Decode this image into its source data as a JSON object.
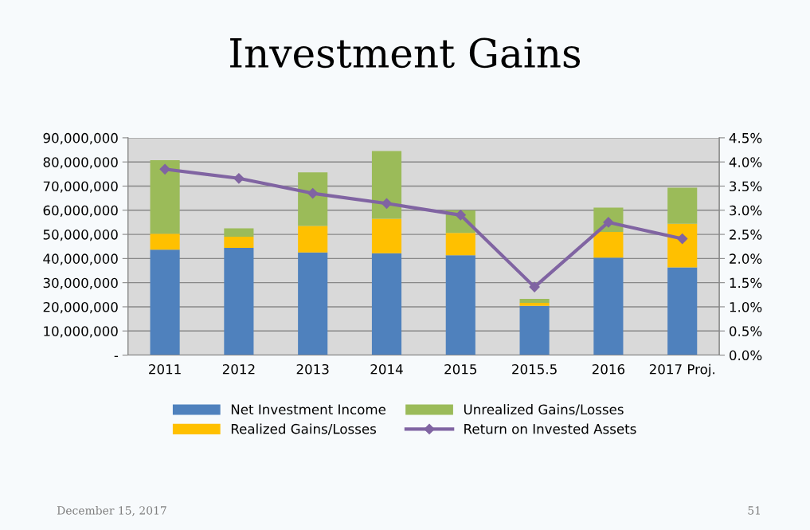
{
  "chart_data": {
    "type": "bar",
    "title": "Investment Gains",
    "stacked": true,
    "categories": [
      "2011",
      "2012",
      "2013",
      "2014",
      "2015",
      "2015.5",
      "2016",
      "2017 Proj."
    ],
    "series": [
      {
        "name": "Net Investment Income",
        "color": "#4f81bd",
        "values": [
          43700000,
          44400000,
          42500000,
          42200000,
          41400000,
          20400000,
          40400000,
          36300000
        ]
      },
      {
        "name": "Realized Gains/Losses",
        "color": "#ffc000",
        "values": [
          6600000,
          4600000,
          11000000,
          14300000,
          9200000,
          1200000,
          10600000,
          18100000
        ]
      },
      {
        "name": "Unrealized Gains/Losses",
        "color": "#9bbb59",
        "values": [
          30400000,
          3500000,
          22200000,
          28000000,
          9300000,
          1700000,
          10100000,
          14900000
        ]
      },
      {
        "name": "Return on Invested Assets",
        "type": "line",
        "axis": "y2",
        "color": "#8064a2",
        "marker": "diamond",
        "values": [
          3.85,
          3.66,
          3.35,
          3.14,
          2.9,
          1.41,
          2.75,
          2.41
        ]
      }
    ],
    "ylim": [
      0,
      90000000
    ],
    "yticks": [
      {
        "value": 0,
        "label": "-"
      },
      {
        "value": 10000000,
        "label": "10,000,000"
      },
      {
        "value": 20000000,
        "label": "20,000,000"
      },
      {
        "value": 30000000,
        "label": "30,000,000"
      },
      {
        "value": 40000000,
        "label": "40,000,000"
      },
      {
        "value": 50000000,
        "label": "50,000,000"
      },
      {
        "value": 60000000,
        "label": "60,000,000"
      },
      {
        "value": 70000000,
        "label": "70,000,000"
      },
      {
        "value": 80000000,
        "label": "80,000,000"
      },
      {
        "value": 90000000,
        "label": "90,000,000"
      }
    ],
    "y2lim": [
      0,
      4.5
    ],
    "y2ticks": [
      {
        "value": 0,
        "label": "0.0%"
      },
      {
        "value": 0.5,
        "label": "0.5%"
      },
      {
        "value": 1,
        "label": "1.0%"
      },
      {
        "value": 1.5,
        "label": "1.5%"
      },
      {
        "value": 2,
        "label": "2.0%"
      },
      {
        "value": 2.5,
        "label": "2.5%"
      },
      {
        "value": 3,
        "label": "3.0%"
      },
      {
        "value": 3.5,
        "label": "3.5%"
      },
      {
        "value": 4,
        "label": "4.0%"
      },
      {
        "value": 4.5,
        "label": "4.5%"
      }
    ],
    "grid": "y",
    "legend": "bottom",
    "annotations": [
      "December 15, 2017",
      "51"
    ]
  }
}
